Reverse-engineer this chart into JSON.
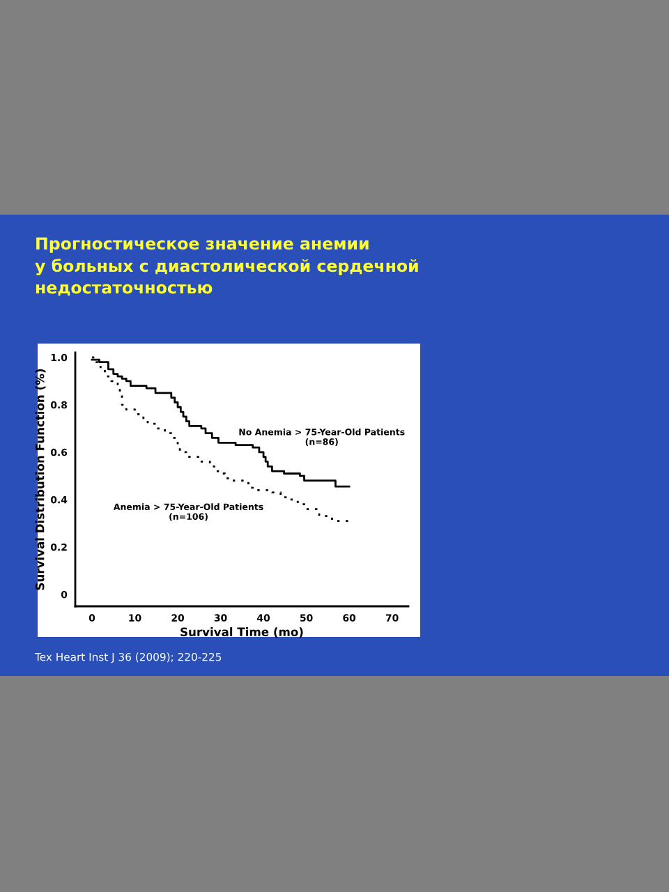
{
  "chart_data": {
    "type": "step",
    "title": "Прогностическое значение анемии\nу больных с диастолической сердечной\nнедостаточностью",
    "xlabel": "Survival Time (mo)",
    "ylabel": "Survival Distribution Function (%)",
    "xlim": [
      -3.9,
      73.8
    ],
    "xticks": [
      0,
      10,
      20,
      30,
      40,
      50,
      60,
      70
    ],
    "ylim": [
      -0.05,
      1.02
    ],
    "yticks": [
      0,
      0.2,
      0.4,
      0.6,
      0.8,
      {
        "value": 1,
        "label": "1.0"
      }
    ],
    "grid": false,
    "legend": false,
    "series": [
      {
        "name": "No Anemia > 75-Year-Old Patients\n(n=86)",
        "color": "#000000",
        "line_style": "solid",
        "x": [
          0,
          1.7,
          3.8,
          5,
          6,
          7,
          8,
          9,
          12.7,
          14.8,
          18.5,
          19.3,
          20,
          20.7,
          21.3,
          22,
          22.7,
          25.5,
          26.5,
          28,
          29.5,
          33.5,
          37.5,
          39,
          40,
          40.5,
          41,
          42,
          44.8,
          48.5,
          49.5,
          56.8,
          60
        ],
        "values": [
          0.99,
          0.98,
          0.95,
          0.93,
          0.92,
          0.91,
          0.9,
          0.88,
          0.87,
          0.85,
          0.83,
          0.81,
          0.79,
          0.77,
          0.75,
          0.73,
          0.71,
          0.7,
          0.68,
          0.66,
          0.64,
          0.63,
          0.62,
          0.6,
          0.58,
          0.56,
          0.54,
          0.52,
          0.51,
          0.5,
          0.48,
          0.455,
          0.455
        ]
      },
      {
        "name": "Anemia > 75-Year-Old Patients\n(n=106)",
        "color": "#000000",
        "line_style": "dotted",
        "x": [
          0,
          1,
          2,
          3,
          4.5,
          6,
          6.5,
          7,
          8,
          10,
          12,
          13,
          15,
          17,
          18.5,
          20,
          20.5,
          22,
          25,
          27.5,
          29,
          30,
          31,
          32,
          36,
          36.5,
          37.5,
          42,
          44,
          46,
          48,
          50,
          53,
          56,
          60
        ],
        "values": [
          1.0,
          0.98,
          0.95,
          0.92,
          0.9,
          0.88,
          0.84,
          0.8,
          0.78,
          0.76,
          0.74,
          0.72,
          0.7,
          0.68,
          0.66,
          0.63,
          0.6,
          0.58,
          0.56,
          0.54,
          0.52,
          0.51,
          0.49,
          0.48,
          0.47,
          0.45,
          0.44,
          0.43,
          0.41,
          0.4,
          0.38,
          0.36,
          0.33,
          0.31,
          0.31
        ]
      }
    ],
    "annotations": [
      "Tex Heart Inst J 36 (2009); 220-225"
    ]
  }
}
